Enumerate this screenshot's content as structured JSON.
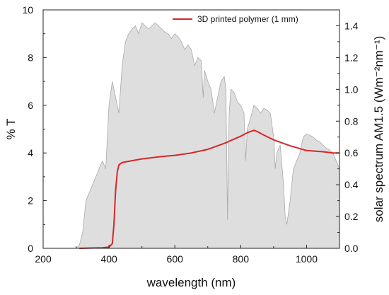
{
  "chart_data": {
    "type": "line",
    "xlabel": "wavelength (nm)",
    "ylabel": "% T",
    "y2label": "solar spectrum AM1.5 (Wm⁻²nm⁻¹)",
    "xlim": [
      200,
      1100
    ],
    "ylim": [
      0,
      10
    ],
    "y2lim": [
      0,
      1.5
    ],
    "x_ticks": [
      "200",
      "400",
      "600",
      "800",
      "1000"
    ],
    "y_ticks": [
      "0",
      "2",
      "4",
      "6",
      "8",
      "10"
    ],
    "y2_ticks": [
      "0.0",
      "0.2",
      "0.4",
      "0.6",
      "0.8",
      "1.0",
      "1.2",
      "1.4"
    ],
    "legend_position": "top-right",
    "series": [
      {
        "name": "3D printed polymer (1 mm)",
        "axis": "left",
        "color": "#d62728",
        "x": [
          310,
          380,
          400,
          410,
          415,
          420,
          425,
          430,
          440,
          460,
          500,
          560,
          600,
          650,
          700,
          750,
          800,
          820,
          840,
          850,
          870,
          900,
          950,
          1000,
          1050,
          1080,
          1100
        ],
        "y": [
          0,
          0.02,
          0.05,
          0.2,
          1.0,
          2.4,
          3.2,
          3.5,
          3.6,
          3.65,
          3.75,
          3.85,
          3.9,
          4.0,
          4.15,
          4.4,
          4.7,
          4.85,
          4.95,
          4.9,
          4.75,
          4.55,
          4.3,
          4.1,
          4.05,
          4.0,
          4.0
        ]
      },
      {
        "name": "solar spectrum AM1.5",
        "axis": "right",
        "color": "#a9a9a9",
        "fill": "#dedede",
        "x": [
          280,
          300,
          310,
          320,
          330,
          340,
          350,
          360,
          370,
          380,
          390,
          400,
          410,
          420,
          430,
          440,
          450,
          460,
          470,
          480,
          490,
          500,
          510,
          520,
          530,
          540,
          550,
          560,
          570,
          580,
          590,
          600,
          610,
          620,
          630,
          640,
          650,
          660,
          670,
          680,
          686,
          690,
          700,
          710,
          720,
          730,
          740,
          750,
          755,
          760,
          762,
          765,
          770,
          780,
          790,
          800,
          810,
          815,
          820,
          830,
          840,
          850,
          860,
          870,
          880,
          890,
          900,
          905,
          910,
          920,
          930,
          935,
          940,
          950,
          960,
          970,
          980,
          990,
          1000,
          1010,
          1020,
          1030,
          1040,
          1050,
          1060,
          1070,
          1080,
          1090,
          1100
        ],
        "y": [
          0,
          0,
          0.02,
          0.1,
          0.3,
          0.35,
          0.4,
          0.45,
          0.5,
          0.55,
          0.5,
          0.9,
          1.05,
          0.95,
          0.85,
          1.15,
          1.3,
          1.35,
          1.38,
          1.4,
          1.35,
          1.42,
          1.4,
          1.38,
          1.4,
          1.42,
          1.4,
          1.38,
          1.36,
          1.35,
          1.32,
          1.35,
          1.33,
          1.3,
          1.25,
          1.28,
          1.25,
          1.15,
          1.2,
          1.18,
          0.95,
          1.12,
          1.05,
          1.0,
          0.85,
          0.95,
          1.05,
          1.08,
          1.0,
          0.18,
          0.5,
          0.85,
          1.0,
          0.98,
          0.92,
          0.9,
          0.85,
          0.55,
          0.75,
          0.82,
          0.9,
          0.88,
          0.85,
          0.88,
          0.87,
          0.85,
          0.7,
          0.5,
          0.6,
          0.65,
          0.4,
          0.2,
          0.15,
          0.3,
          0.5,
          0.55,
          0.6,
          0.7,
          0.72,
          0.71,
          0.7,
          0.68,
          0.67,
          0.65,
          0.63,
          0.62,
          0.6,
          0.55,
          0.5
        ]
      }
    ]
  }
}
